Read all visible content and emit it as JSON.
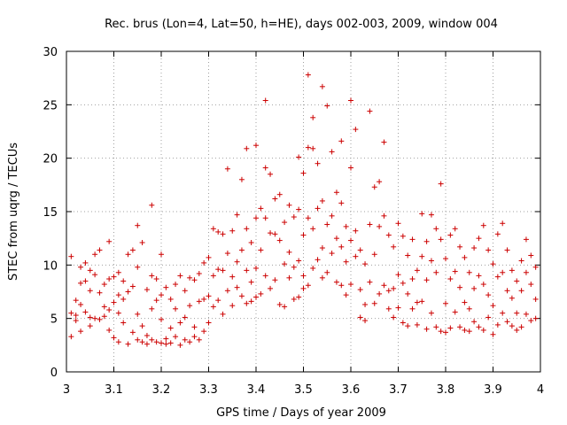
{
  "chart_data": {
    "type": "scatter",
    "title": "Rec. brus (Lon=4, Lat=50, h=HE), days 002-003, 2009, window 004",
    "xlabel": "GPS time / Days of year 2009",
    "ylabel": "STEC from uqrg / TECUs",
    "xlim": [
      3,
      4
    ],
    "ylim": [
      0,
      30
    ],
    "xticks": [
      "3",
      "3.1",
      "3.2",
      "3.3",
      "3.4",
      "3.5",
      "3.6",
      "3.7",
      "3.8",
      "3.9",
      "4"
    ],
    "yticks": [
      "0",
      "5",
      "10",
      "15",
      "20",
      "25",
      "30"
    ],
    "grid": true,
    "marker_color": "#cc0000",
    "series": [
      {
        "points": [
          [
            3.01,
            10.8
          ],
          [
            3.01,
            3.3
          ],
          [
            3.01,
            5.5
          ],
          [
            3.02,
            6.7
          ],
          [
            3.02,
            5.3
          ],
          [
            3.02,
            4.8
          ],
          [
            3.03,
            8.3
          ],
          [
            3.03,
            9.8
          ],
          [
            3.03,
            6.3
          ],
          [
            3.03,
            3.8
          ],
          [
            3.04,
            10.2
          ],
          [
            3.04,
            8.5
          ],
          [
            3.04,
            5.6
          ],
          [
            3.05,
            9.5
          ],
          [
            3.05,
            7.6
          ],
          [
            3.05,
            5.1
          ],
          [
            3.05,
            4.3
          ],
          [
            3.06,
            11.0
          ],
          [
            3.06,
            9.1
          ],
          [
            3.06,
            5.0
          ],
          [
            3.07,
            11.4
          ],
          [
            3.07,
            7.4
          ],
          [
            3.07,
            4.9
          ],
          [
            3.08,
            8.2
          ],
          [
            3.08,
            6.1
          ],
          [
            3.08,
            5.2
          ],
          [
            3.09,
            12.2
          ],
          [
            3.09,
            8.7
          ],
          [
            3.09,
            5.8
          ],
          [
            3.09,
            3.9
          ],
          [
            3.1,
            8.9
          ],
          [
            3.1,
            6.5
          ],
          [
            3.1,
            3.2
          ],
          [
            3.11,
            9.3
          ],
          [
            3.11,
            7.2
          ],
          [
            3.11,
            5.5
          ],
          [
            3.11,
            2.8
          ],
          [
            3.12,
            8.5
          ],
          [
            3.12,
            6.8
          ],
          [
            3.12,
            4.6
          ],
          [
            3.13,
            11.0
          ],
          [
            3.13,
            7.5
          ],
          [
            3.13,
            2.6
          ],
          [
            3.14,
            11.4
          ],
          [
            3.14,
            8.0
          ],
          [
            3.14,
            3.7
          ],
          [
            3.15,
            13.7
          ],
          [
            3.15,
            9.8
          ],
          [
            3.15,
            5.4
          ],
          [
            3.15,
            3.0
          ],
          [
            3.16,
            12.1
          ],
          [
            3.16,
            4.3
          ],
          [
            3.16,
            2.8
          ],
          [
            3.17,
            7.7
          ],
          [
            3.17,
            3.4
          ],
          [
            3.17,
            2.6
          ],
          [
            3.18,
            15.6
          ],
          [
            3.18,
            9.0
          ],
          [
            3.18,
            5.9
          ],
          [
            3.18,
            3.0
          ],
          [
            3.19,
            8.7
          ],
          [
            3.19,
            6.7
          ],
          [
            3.19,
            2.8
          ],
          [
            3.2,
            11.0
          ],
          [
            3.2,
            7.2
          ],
          [
            3.2,
            4.9
          ],
          [
            3.2,
            2.7
          ],
          [
            3.21,
            7.9
          ],
          [
            3.21,
            3.1
          ],
          [
            3.21,
            2.6
          ],
          [
            3.22,
            6.8
          ],
          [
            3.22,
            4.1
          ],
          [
            3.22,
            2.7
          ],
          [
            3.23,
            8.2
          ],
          [
            3.23,
            5.9
          ],
          [
            3.23,
            3.3
          ],
          [
            3.24,
            9.0
          ],
          [
            3.24,
            4.6
          ],
          [
            3.24,
            2.5
          ],
          [
            3.25,
            7.6
          ],
          [
            3.25,
            5.1
          ],
          [
            3.25,
            3.0
          ],
          [
            3.26,
            8.8
          ],
          [
            3.26,
            6.2
          ],
          [
            3.26,
            2.8
          ],
          [
            3.27,
            8.6
          ],
          [
            3.27,
            4.2
          ],
          [
            3.27,
            3.3
          ],
          [
            3.28,
            9.2
          ],
          [
            3.28,
            6.6
          ],
          [
            3.28,
            3.0
          ],
          [
            3.29,
            10.2
          ],
          [
            3.29,
            6.8
          ],
          [
            3.29,
            3.8
          ],
          [
            3.3,
            10.7
          ],
          [
            3.3,
            7.1
          ],
          [
            3.3,
            4.6
          ],
          [
            3.31,
            13.4
          ],
          [
            3.31,
            9.0
          ],
          [
            3.31,
            6.1
          ],
          [
            3.32,
            13.1
          ],
          [
            3.32,
            9.6
          ],
          [
            3.32,
            6.7
          ],
          [
            3.33,
            12.9
          ],
          [
            3.33,
            9.5
          ],
          [
            3.33,
            5.4
          ],
          [
            3.34,
            19.0
          ],
          [
            3.34,
            11.1
          ],
          [
            3.34,
            7.6
          ],
          [
            3.35,
            13.2
          ],
          [
            3.35,
            8.9
          ],
          [
            3.35,
            6.2
          ],
          [
            3.36,
            14.7
          ],
          [
            3.36,
            10.3
          ],
          [
            3.36,
            7.9
          ],
          [
            3.37,
            18.0
          ],
          [
            3.37,
            11.4
          ],
          [
            3.37,
            7.1
          ],
          [
            3.38,
            20.9
          ],
          [
            3.38,
            13.4
          ],
          [
            3.38,
            9.5
          ],
          [
            3.38,
            6.4
          ],
          [
            3.39,
            12.1
          ],
          [
            3.39,
            8.4
          ],
          [
            3.39,
            6.6
          ],
          [
            3.4,
            21.2
          ],
          [
            3.4,
            14.4
          ],
          [
            3.4,
            9.7
          ],
          [
            3.4,
            7.0
          ],
          [
            3.41,
            15.3
          ],
          [
            3.41,
            11.4
          ],
          [
            3.41,
            7.3
          ],
          [
            3.42,
            25.4
          ],
          [
            3.42,
            19.1
          ],
          [
            3.42,
            14.4
          ],
          [
            3.42,
            9.0
          ],
          [
            3.43,
            18.5
          ],
          [
            3.43,
            13.0
          ],
          [
            3.43,
            7.8
          ],
          [
            3.44,
            16.2
          ],
          [
            3.44,
            12.9
          ],
          [
            3.44,
            8.6
          ],
          [
            3.45,
            16.6
          ],
          [
            3.45,
            12.3
          ],
          [
            3.45,
            6.3
          ],
          [
            3.46,
            14.0
          ],
          [
            3.46,
            10.1
          ],
          [
            3.46,
            6.1
          ],
          [
            3.47,
            15.6
          ],
          [
            3.47,
            11.2
          ],
          [
            3.47,
            8.8
          ],
          [
            3.48,
            14.5
          ],
          [
            3.48,
            9.8
          ],
          [
            3.48,
            6.8
          ],
          [
            3.49,
            20.1
          ],
          [
            3.49,
            15.2
          ],
          [
            3.49,
            10.4
          ],
          [
            3.49,
            7.0
          ],
          [
            3.5,
            18.6
          ],
          [
            3.5,
            12.8
          ],
          [
            3.5,
            9.0
          ],
          [
            3.5,
            7.8
          ],
          [
            3.51,
            27.8
          ],
          [
            3.51,
            21.0
          ],
          [
            3.51,
            14.4
          ],
          [
            3.51,
            8.1
          ],
          [
            3.52,
            23.8
          ],
          [
            3.52,
            20.9
          ],
          [
            3.52,
            13.4
          ],
          [
            3.52,
            9.7
          ],
          [
            3.53,
            19.5
          ],
          [
            3.53,
            15.3
          ],
          [
            3.53,
            10.5
          ],
          [
            3.54,
            26.7
          ],
          [
            3.54,
            16.0
          ],
          [
            3.54,
            11.6
          ],
          [
            3.54,
            8.8
          ],
          [
            3.55,
            24.9
          ],
          [
            3.55,
            13.8
          ],
          [
            3.55,
            9.3
          ],
          [
            3.56,
            20.6
          ],
          [
            3.56,
            14.6
          ],
          [
            3.56,
            11.1
          ],
          [
            3.57,
            16.8
          ],
          [
            3.57,
            12.5
          ],
          [
            3.57,
            8.4
          ],
          [
            3.58,
            21.6
          ],
          [
            3.58,
            15.8
          ],
          [
            3.58,
            11.7
          ],
          [
            3.58,
            8.1
          ],
          [
            3.59,
            13.6
          ],
          [
            3.59,
            10.3
          ],
          [
            3.59,
            7.2
          ],
          [
            3.6,
            25.4
          ],
          [
            3.6,
            19.1
          ],
          [
            3.6,
            12.3
          ],
          [
            3.6,
            8.2
          ],
          [
            3.61,
            22.7
          ],
          [
            3.61,
            13.2
          ],
          [
            3.61,
            10.8
          ],
          [
            3.62,
            11.4
          ],
          [
            3.62,
            7.7
          ],
          [
            3.62,
            5.1
          ],
          [
            3.63,
            10.1
          ],
          [
            3.63,
            6.3
          ],
          [
            3.63,
            4.8
          ],
          [
            3.64,
            24.4
          ],
          [
            3.64,
            13.8
          ],
          [
            3.64,
            8.4
          ],
          [
            3.65,
            17.3
          ],
          [
            3.65,
            11.0
          ],
          [
            3.65,
            6.4
          ],
          [
            3.66,
            17.8
          ],
          [
            3.66,
            13.6
          ],
          [
            3.66,
            7.3
          ],
          [
            3.67,
            21.5
          ],
          [
            3.67,
            14.6
          ],
          [
            3.67,
            8.1
          ],
          [
            3.68,
            12.8
          ],
          [
            3.68,
            7.6
          ],
          [
            3.68,
            5.9
          ],
          [
            3.69,
            11.7
          ],
          [
            3.69,
            7.8
          ],
          [
            3.69,
            5.1
          ],
          [
            3.7,
            13.9
          ],
          [
            3.7,
            9.1
          ],
          [
            3.7,
            6.0
          ],
          [
            3.71,
            12.7
          ],
          [
            3.71,
            8.3
          ],
          [
            3.71,
            4.6
          ],
          [
            3.72,
            10.9
          ],
          [
            3.72,
            7.3
          ],
          [
            3.72,
            4.3
          ],
          [
            3.73,
            12.4
          ],
          [
            3.73,
            8.7
          ],
          [
            3.73,
            5.9
          ],
          [
            3.74,
            9.5
          ],
          [
            3.74,
            6.5
          ],
          [
            3.74,
            4.4
          ],
          [
            3.75,
            14.8
          ],
          [
            3.75,
            10.8
          ],
          [
            3.75,
            6.6
          ],
          [
            3.76,
            12.2
          ],
          [
            3.76,
            8.6
          ],
          [
            3.76,
            4.0
          ],
          [
            3.77,
            14.7
          ],
          [
            3.77,
            10.4
          ],
          [
            3.77,
            5.5
          ],
          [
            3.78,
            13.4
          ],
          [
            3.78,
            9.3
          ],
          [
            3.78,
            4.2
          ],
          [
            3.79,
            17.6
          ],
          [
            3.79,
            12.4
          ],
          [
            3.79,
            3.8
          ],
          [
            3.8,
            10.6
          ],
          [
            3.8,
            6.4
          ],
          [
            3.8,
            3.7
          ],
          [
            3.81,
            12.8
          ],
          [
            3.81,
            8.7
          ],
          [
            3.81,
            4.1
          ],
          [
            3.82,
            13.4
          ],
          [
            3.82,
            9.4
          ],
          [
            3.82,
            5.6
          ],
          [
            3.83,
            11.7
          ],
          [
            3.83,
            7.9
          ],
          [
            3.83,
            4.2
          ],
          [
            3.84,
            10.7
          ],
          [
            3.84,
            6.5
          ],
          [
            3.84,
            3.9
          ],
          [
            3.85,
            9.3
          ],
          [
            3.85,
            5.9
          ],
          [
            3.85,
            3.8
          ],
          [
            3.86,
            11.6
          ],
          [
            3.86,
            7.8
          ],
          [
            3.86,
            4.7
          ],
          [
            3.87,
            12.5
          ],
          [
            3.87,
            9.0
          ],
          [
            3.87,
            4.2
          ],
          [
            3.88,
            13.7
          ],
          [
            3.88,
            8.2
          ],
          [
            3.88,
            3.9
          ],
          [
            3.89,
            11.4
          ],
          [
            3.89,
            7.2
          ],
          [
            3.89,
            5.1
          ],
          [
            3.9,
            10.1
          ],
          [
            3.9,
            6.2
          ],
          [
            3.9,
            3.5
          ],
          [
            3.91,
            12.9
          ],
          [
            3.91,
            8.9
          ],
          [
            3.91,
            4.4
          ],
          [
            3.92,
            13.9
          ],
          [
            3.92,
            9.3
          ],
          [
            3.92,
            5.5
          ],
          [
            3.93,
            11.4
          ],
          [
            3.93,
            7.6
          ],
          [
            3.93,
            4.7
          ],
          [
            3.94,
            9.5
          ],
          [
            3.94,
            6.9
          ],
          [
            3.94,
            4.3
          ],
          [
            3.95,
            8.5
          ],
          [
            3.95,
            5.5
          ],
          [
            3.95,
            3.9
          ],
          [
            3.96,
            10.4
          ],
          [
            3.96,
            7.6
          ],
          [
            3.96,
            4.2
          ],
          [
            3.97,
            12.4
          ],
          [
            3.97,
            9.3
          ],
          [
            3.97,
            5.4
          ],
          [
            3.98,
            10.9
          ],
          [
            3.98,
            8.2
          ],
          [
            3.98,
            4.8
          ],
          [
            3.99,
            9.8
          ],
          [
            3.99,
            6.8
          ],
          [
            3.99,
            5.0
          ]
        ]
      }
    ]
  }
}
